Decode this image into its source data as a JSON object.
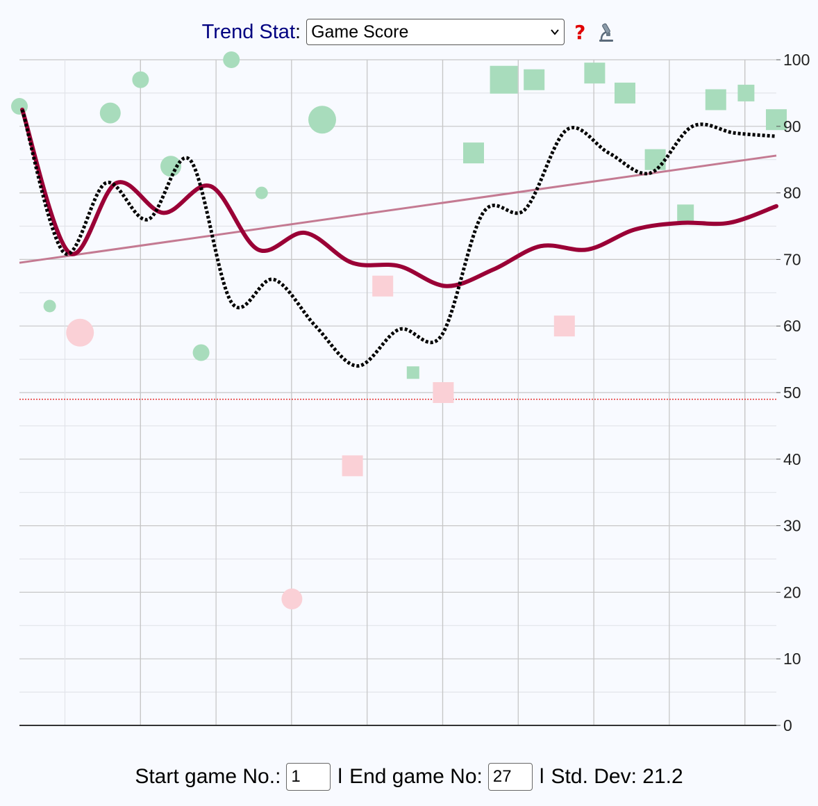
{
  "header": {
    "trend_label": "Trend Stat",
    "colon": ":",
    "selected_stat": "Game Score",
    "help_symbol": "?"
  },
  "footer": {
    "start_label": "Start game No.:",
    "start_value": "1",
    "separator": "l",
    "end_label": "End game No:",
    "end_value": "27",
    "std_dev_label": "Std. Dev: 21.2"
  },
  "chart_data": {
    "type": "scatter",
    "x": [
      1,
      2,
      3,
      4,
      5,
      6,
      7,
      8,
      9,
      10,
      11,
      12,
      13,
      14,
      15,
      16,
      17,
      18,
      19,
      20,
      21,
      22,
      23,
      24,
      25,
      26,
      27
    ],
    "y_ticks": [
      "0",
      "10",
      "20",
      "30",
      "40",
      "50",
      "60",
      "70",
      "80",
      "90",
      "100"
    ],
    "ylim": [
      0,
      100
    ],
    "xlim": [
      1,
      27
    ],
    "grid": true,
    "y_axis_side": "right",
    "points": [
      {
        "x": 1,
        "y": 93,
        "shape": "circle",
        "result": "win",
        "size": 2
      },
      {
        "x": 2,
        "y": 63,
        "shape": "circle",
        "result": "win",
        "size": 1
      },
      {
        "x": 3,
        "y": 59,
        "shape": "circle",
        "result": "loss",
        "size": 4
      },
      {
        "x": 4,
        "y": 92,
        "shape": "circle",
        "result": "win",
        "size": 3
      },
      {
        "x": 5,
        "y": 97,
        "shape": "circle",
        "result": "win",
        "size": 2
      },
      {
        "x": 6,
        "y": 84,
        "shape": "circle",
        "result": "win",
        "size": 3
      },
      {
        "x": 7,
        "y": 56,
        "shape": "circle",
        "result": "win",
        "size": 2
      },
      {
        "x": 8,
        "y": 100,
        "shape": "circle",
        "result": "win",
        "size": 2
      },
      {
        "x": 9,
        "y": 80,
        "shape": "circle",
        "result": "win",
        "size": 1
      },
      {
        "x": 10,
        "y": 19,
        "shape": "circle",
        "result": "loss",
        "size": 3
      },
      {
        "x": 11,
        "y": 91,
        "shape": "circle",
        "result": "win",
        "size": 4
      },
      {
        "x": 12,
        "y": 39,
        "shape": "square",
        "result": "loss",
        "size": 3
      },
      {
        "x": 13,
        "y": 66,
        "shape": "square",
        "result": "loss",
        "size": 3
      },
      {
        "x": 14,
        "y": 53,
        "shape": "square",
        "result": "win",
        "size": 1
      },
      {
        "x": 15,
        "y": 50,
        "shape": "square",
        "result": "loss",
        "size": 3
      },
      {
        "x": 16,
        "y": 86,
        "shape": "square",
        "result": "win",
        "size": 3
      },
      {
        "x": 17,
        "y": 97,
        "shape": "square",
        "result": "win",
        "size": 4
      },
      {
        "x": 18,
        "y": 97,
        "shape": "square",
        "result": "win",
        "size": 3
      },
      {
        "x": 19,
        "y": 60,
        "shape": "square",
        "result": "loss",
        "size": 3
      },
      {
        "x": 20,
        "y": 98,
        "shape": "square",
        "result": "win",
        "size": 3
      },
      {
        "x": 21,
        "y": 95,
        "shape": "square",
        "result": "win",
        "size": 3
      },
      {
        "x": 22,
        "y": 85,
        "shape": "square",
        "result": "win",
        "size": 3
      },
      {
        "x": 23,
        "y": 77,
        "shape": "square",
        "result": "win",
        "size": 2
      },
      {
        "x": 24,
        "y": 94,
        "shape": "square",
        "result": "win",
        "size": 3
      },
      {
        "x": 25,
        "y": 95,
        "shape": "square",
        "result": "win",
        "size": 2
      },
      {
        "x": 26,
        "y": 91,
        "shape": "square",
        "result": "win",
        "size": 3
      }
    ],
    "series": [
      {
        "style": "solid-thick",
        "values": [
          92.5,
          71,
          81.5,
          77,
          81,
          71.5,
          74,
          69.5,
          69,
          66,
          68.5,
          72,
          71.5,
          74.5,
          75.5,
          75.5,
          78
        ]
      },
      {
        "style": "dotted",
        "values": [
          92.5,
          71,
          81.5,
          76,
          85,
          63.5,
          67,
          60,
          54,
          59.5,
          58.5,
          77,
          77.5,
          89.5,
          86,
          83,
          90,
          89,
          88.5
        ]
      },
      {
        "style": "regression-line",
        "values": [
          69.5,
          85.6
        ]
      }
    ],
    "reference_line": {
      "y": 49,
      "style": "dotted",
      "color": "#e83030"
    },
    "colors": {
      "win": "#a8dcbc",
      "loss": "#fad0d6",
      "rolling": "#9a0036",
      "regression": "#c47a92",
      "dotted": "#000000",
      "grid_major": "#c6c6c6",
      "grid_minor": "#e2e4ea"
    }
  }
}
